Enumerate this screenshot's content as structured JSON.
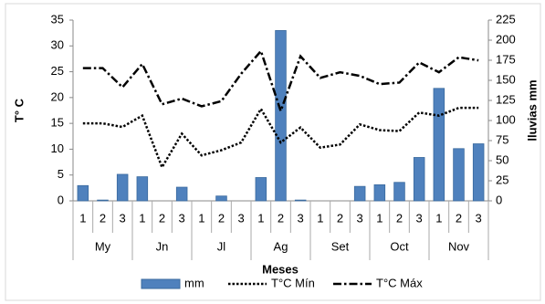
{
  "chart_data": {
    "type": "bar",
    "categories": [
      "1",
      "2",
      "3",
      "1",
      "2",
      "3",
      "1",
      "2",
      "3",
      "1",
      "2",
      "3",
      "1",
      "2",
      "3",
      "1",
      "2",
      "3",
      "1",
      "2",
      "3"
    ],
    "category_groups": [
      "My",
      "Jn",
      "Jl",
      "Ag",
      "Set",
      "Oct",
      "Nov"
    ],
    "x_label": "Meses",
    "y_label": "T° C",
    "y2_label": "lluvias mm",
    "ylim": [
      0,
      35
    ],
    "yticks": [
      0,
      5,
      10,
      15,
      20,
      25,
      30,
      35
    ],
    "y2lim": [
      0,
      225
    ],
    "y2ticks": [
      0,
      25,
      50,
      75,
      100,
      125,
      150,
      175,
      200,
      225
    ],
    "grid": false,
    "legend": "bottom",
    "series": [
      {
        "name": "mm",
        "type": "bar",
        "axis": "y2",
        "color": "#4f81bd",
        "values": [
          19,
          1,
          33,
          30,
          0,
          17,
          0,
          6,
          0,
          29,
          212,
          1,
          0,
          0,
          18,
          20,
          23,
          54,
          140,
          65,
          71
        ]
      },
      {
        "name": "T°C Mín",
        "type": "line",
        "color": "#000000",
        "dash": "dotted",
        "values": [
          15,
          15,
          14.3,
          16.5,
          6.5,
          13,
          8.8,
          9.8,
          11.3,
          17.8,
          11.3,
          14.2,
          10.3,
          10.9,
          14.8,
          13.7,
          13.5,
          17.1,
          16.5,
          18,
          18
        ]
      },
      {
        "name": "T°C Máx",
        "type": "line",
        "color": "#000000",
        "dash": "dashdot",
        "values": [
          25.7,
          25.7,
          22,
          26.5,
          18.7,
          19.8,
          18.3,
          19.3,
          24.6,
          29,
          17.4,
          28,
          23.8,
          24.9,
          24.2,
          22.6,
          22.9,
          26.8,
          24.9,
          27.8,
          27.2
        ]
      }
    ]
  }
}
